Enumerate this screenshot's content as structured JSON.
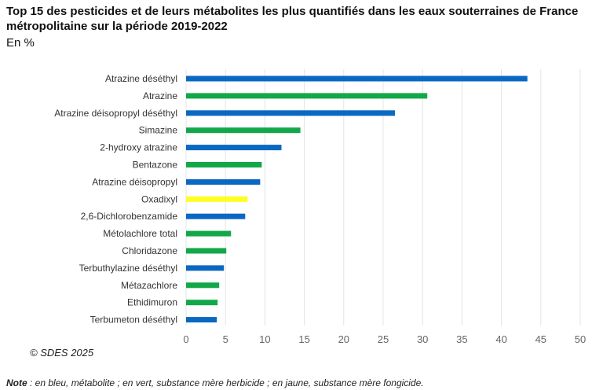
{
  "chart_data": {
    "type": "bar",
    "orientation": "horizontal",
    "title": "Top 15 des pesticides et de leurs métabolites les plus quantifiés dans les eaux souterraines de France métropolitaine sur la période 2019-2022",
    "subtitle": "En %",
    "categories": [
      "Atrazine déséthyl",
      "Atrazine",
      "Atrazine déisopropyl déséthyl",
      "Simazine",
      "2-hydroxy atrazine",
      "Bentazone",
      "Atrazine déisopropyl",
      "Oxadixyl",
      "2,6-Dichlorobenzamide",
      "Métolachlore total",
      "Chloridazone",
      "Terbuthylazine déséthyl",
      "Métazachlore",
      "Ethidimuron",
      "Terbumeton déséthyl"
    ],
    "values": [
      43.3,
      30.6,
      26.5,
      14.5,
      12.1,
      9.6,
      9.4,
      7.8,
      7.5,
      5.7,
      5.1,
      4.8,
      4.2,
      4.0,
      3.9
    ],
    "types": [
      "metabolite",
      "herbicide",
      "metabolite",
      "herbicide",
      "metabolite",
      "herbicide",
      "metabolite",
      "fongicide",
      "metabolite",
      "herbicide",
      "herbicide",
      "metabolite",
      "herbicide",
      "herbicide",
      "metabolite"
    ],
    "colors": {
      "metabolite": "#0a68c2",
      "herbicide": "#12a84a",
      "fongicide": "#ffff22"
    },
    "xlim": [
      0,
      50
    ],
    "xticks": [
      0,
      5,
      10,
      15,
      20,
      25,
      30,
      35,
      40,
      45,
      50
    ],
    "grid": true
  },
  "source": "© SDES 2025",
  "note": {
    "label": "Note",
    "text": " : en bleu, métabolite ; en vert, substance mère herbicide ; en jaune, substance mère fongicide."
  }
}
